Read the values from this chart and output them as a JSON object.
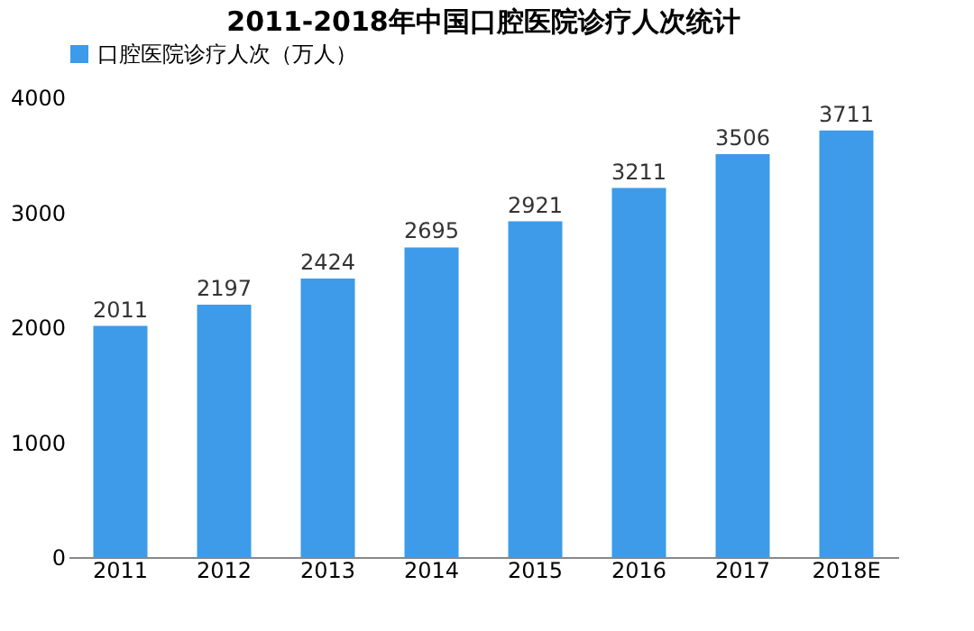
{
  "chart_data": {
    "type": "bar",
    "title": "2011-2018年中国口腔医院诊疗人次统计",
    "categories": [
      "2011",
      "2012",
      "2013",
      "2014",
      "2015",
      "2016",
      "2017",
      "2018E"
    ],
    "series": [
      {
        "name": "口腔医院诊疗人次（万人）",
        "color": "#3d9be9",
        "values": [
          2011,
          2197,
          2424,
          2695,
          2921,
          3211,
          3506,
          3711
        ]
      }
    ],
    "ylim": [
      0,
      4000
    ],
    "yticks": [
      0,
      1000,
      2000,
      3000,
      4000
    ],
    "grid": false,
    "legend": "top",
    "data_labels": true
  }
}
